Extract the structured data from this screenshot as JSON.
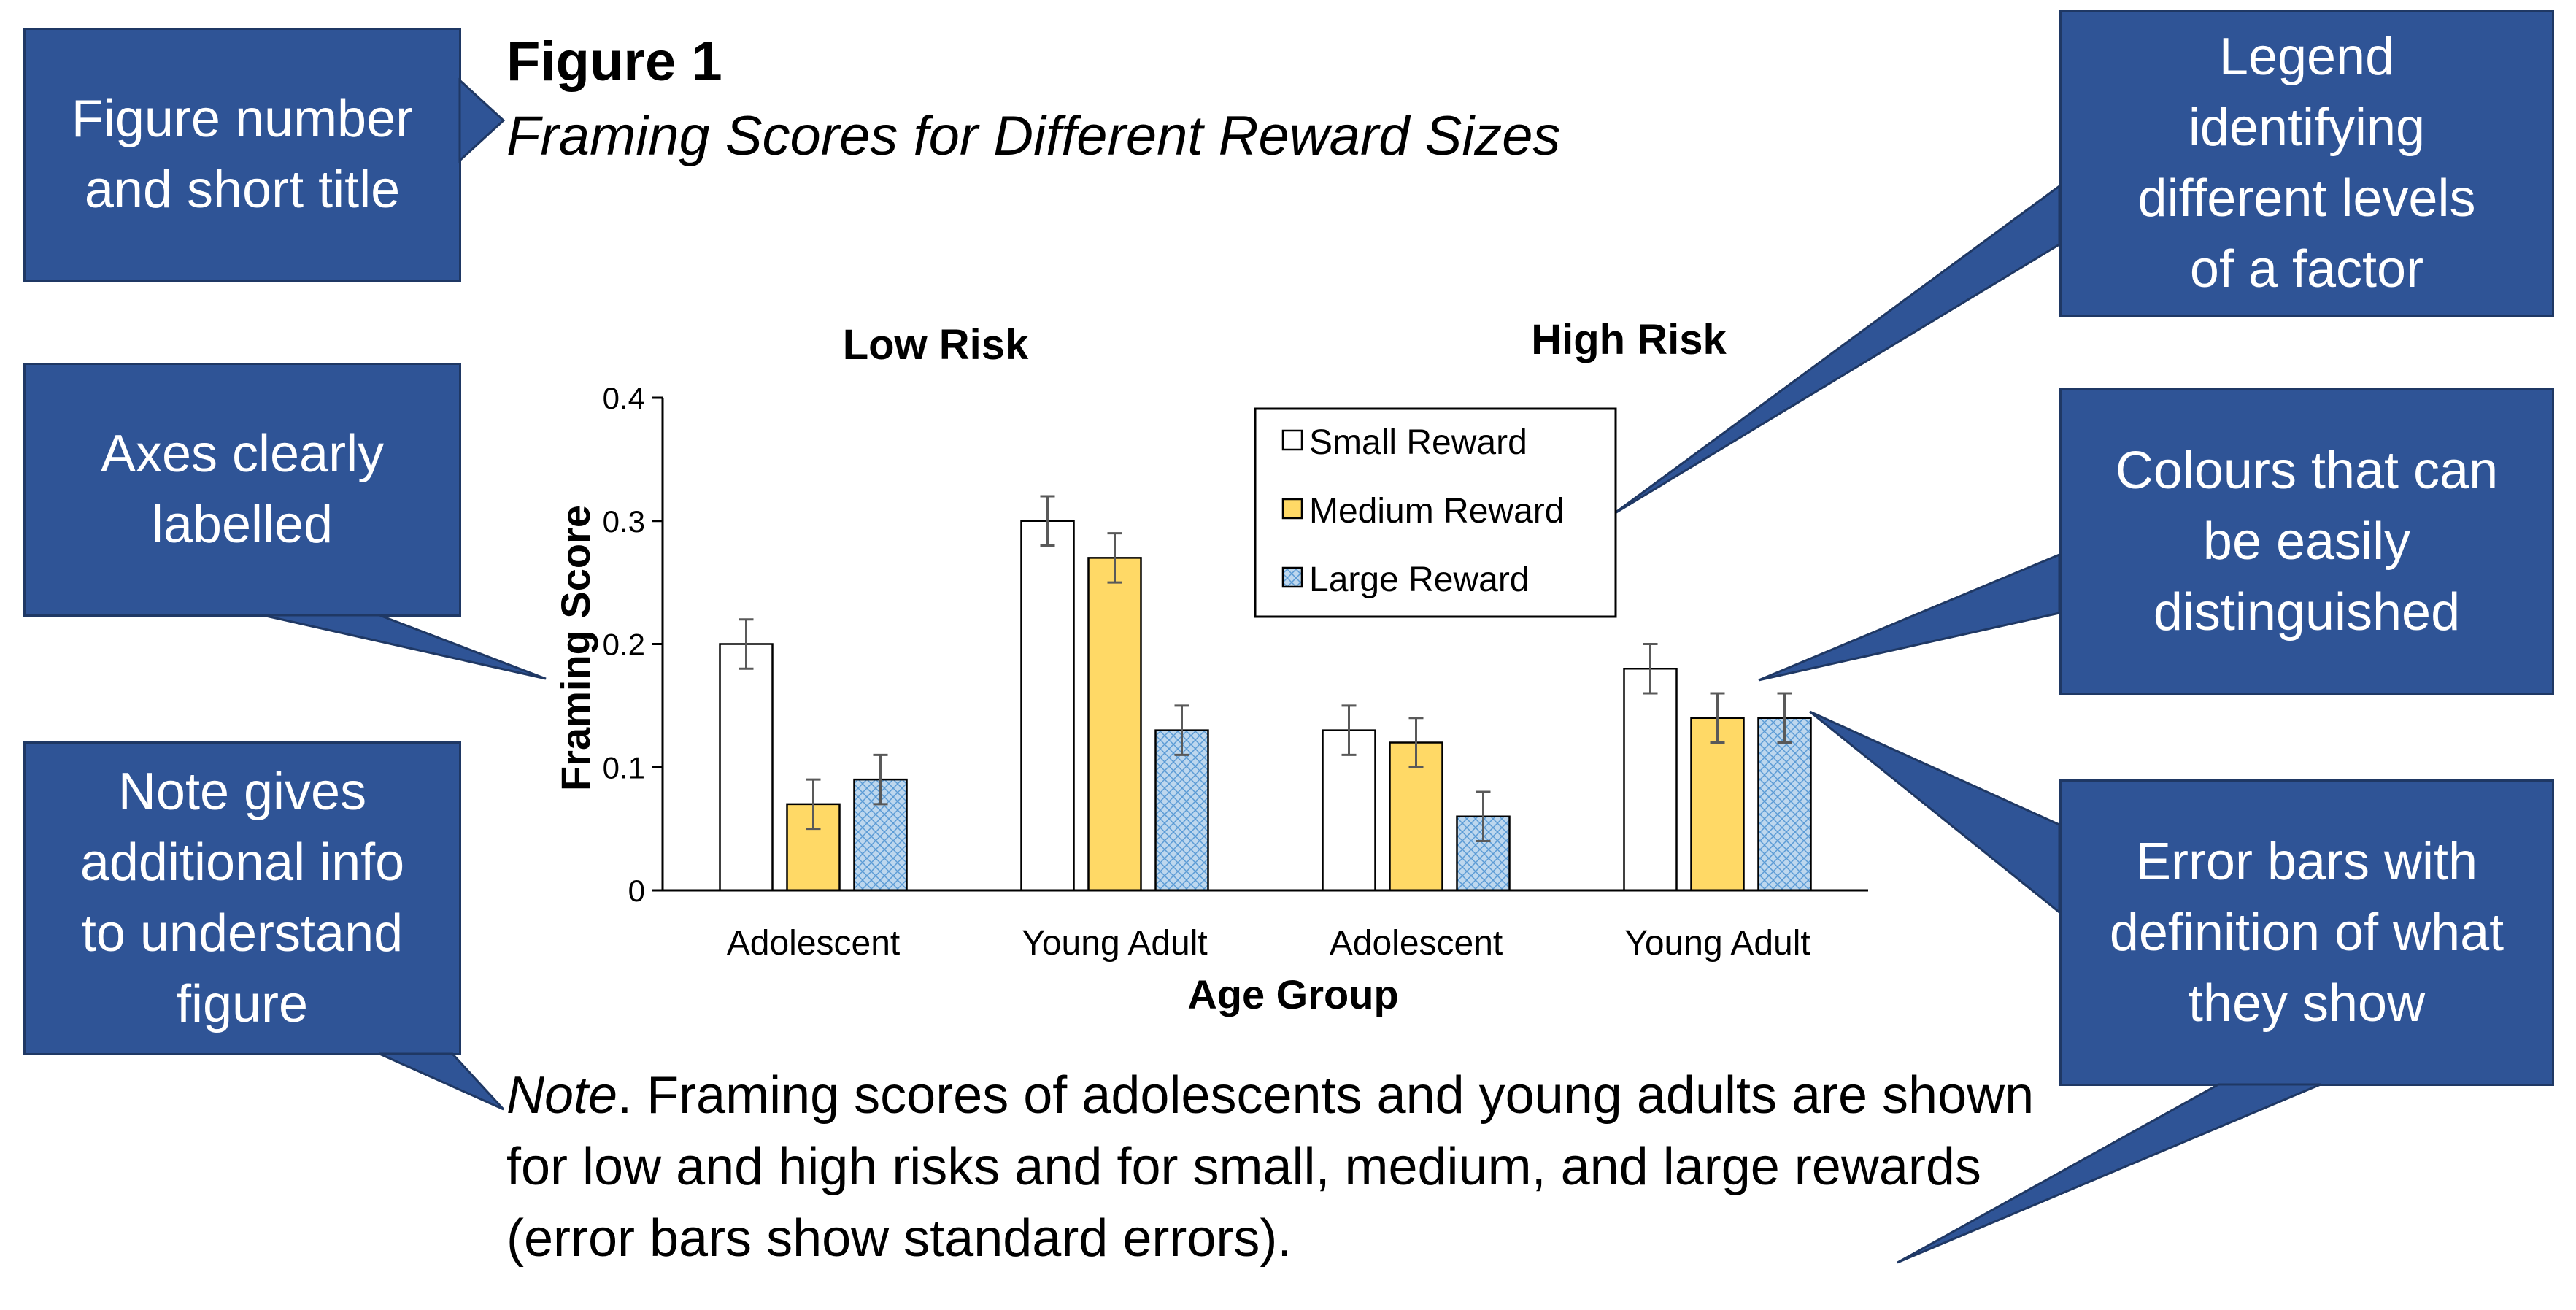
{
  "figure": {
    "number": "Figure 1",
    "title": "Framing Scores for Different Reward Sizes"
  },
  "note": {
    "label": "Note",
    "text": ". Framing scores of adolescents and young adults are shown for low and high risks and for small, medium, and large rewards (error bars show standard errors)."
  },
  "callouts": {
    "title_callout": [
      "Figure number",
      "and short title"
    ],
    "axes_callout": [
      "Axes clearly",
      "labelled"
    ],
    "note_callout": [
      "Note gives",
      "additional info",
      "to understand",
      "figure"
    ],
    "legend_callout": [
      "Legend",
      "identifying",
      "different levels",
      "of a factor"
    ],
    "colours_callout": [
      "Colours that can",
      "be easily",
      "distinguished"
    ],
    "error_callout": [
      "Error bars with",
      "definition of what",
      "they show"
    ]
  },
  "colors": {
    "callout_fill": "#2f5496",
    "small": "#ffffff",
    "medium": "#ffd966",
    "large": "#bdd7ee"
  },
  "chart_data": {
    "type": "bar",
    "xlabel": "Age Group",
    "ylabel": "Framing Score",
    "ylim": [
      0,
      0.4
    ],
    "yticks": [
      0,
      0.1,
      0.2,
      0.3,
      0.4
    ],
    "ytick_labels": [
      "0",
      "0.1",
      "0.2",
      "0.3",
      "0.4"
    ],
    "panels": [
      "Low Risk",
      "High Risk"
    ],
    "categories": [
      "Adolescent",
      "Young Adult",
      "Adolescent",
      "Young Adult"
    ],
    "category_panel": [
      0,
      0,
      1,
      1
    ],
    "legend_position": "top-center",
    "series": [
      {
        "name": "Small Reward",
        "values": [
          0.2,
          0.3,
          0.13,
          0.18
        ],
        "errors": [
          0.02,
          0.02,
          0.02,
          0.02
        ]
      },
      {
        "name": "Medium Reward",
        "values": [
          0.07,
          0.27,
          0.12,
          0.14
        ],
        "errors": [
          0.02,
          0.02,
          0.02,
          0.02
        ]
      },
      {
        "name": "Large Reward",
        "values": [
          0.09,
          0.13,
          0.06,
          0.14
        ],
        "errors": [
          0.02,
          0.02,
          0.02,
          0.02
        ]
      }
    ]
  }
}
